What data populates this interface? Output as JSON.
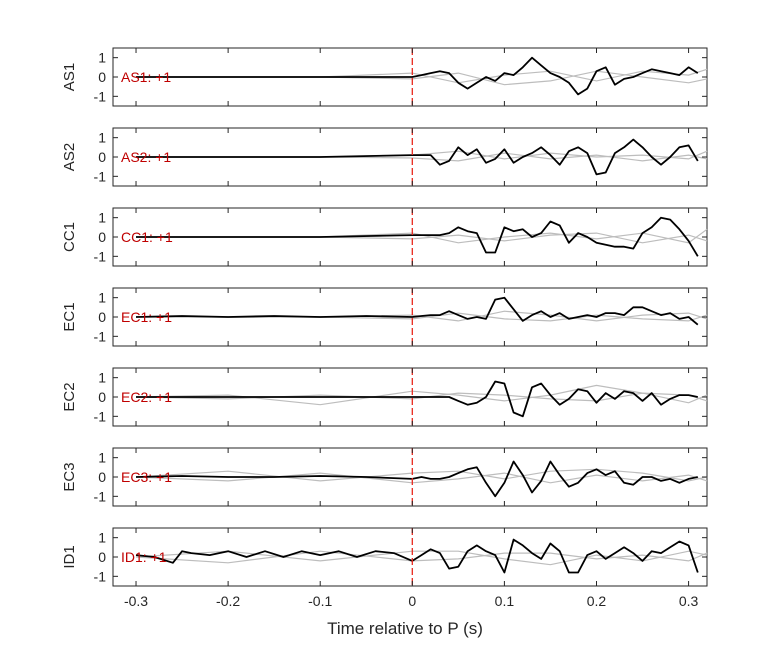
{
  "chart_data": {
    "type": "line",
    "xlabel": "Time relative to P (s)",
    "xlim": [
      -0.325,
      0.32
    ],
    "xticks": [
      -0.3,
      -0.2,
      -0.1,
      0,
      0.1,
      0.2,
      0.3
    ],
    "xtick_labels": [
      "-0.3",
      "-0.2",
      "-0.1",
      "0",
      "0.1",
      "0.2",
      "0.3"
    ],
    "ylim": [
      -1.5,
      1.5
    ],
    "yticks": [
      1,
      0,
      -1
    ],
    "ytick_labels": [
      "1",
      "0",
      "-1"
    ],
    "grid": false,
    "marker_line": {
      "x": 0,
      "color": "#e8281e",
      "style": "dashed"
    },
    "colors": {
      "main": "#000000",
      "background_traces": "#bdbdbd",
      "annotation": "#c00000"
    },
    "panels": [
      {
        "ylabel": "AS1",
        "annotation": "AS1: +1",
        "main": {
          "x": [
            -0.3,
            -0.25,
            -0.2,
            -0.15,
            -0.1,
            -0.05,
            0,
            0.01,
            0.02,
            0.03,
            0.04,
            0.05,
            0.06,
            0.07,
            0.08,
            0.09,
            0.1,
            0.11,
            0.12,
            0.13,
            0.14,
            0.15,
            0.16,
            0.17,
            0.18,
            0.19,
            0.2,
            0.21,
            0.22,
            0.23,
            0.24,
            0.25,
            0.26,
            0.27,
            0.28,
            0.29,
            0.3,
            0.31
          ],
          "y": [
            0,
            0,
            0,
            0,
            0,
            0,
            0,
            0.1,
            0.2,
            0.3,
            0.2,
            -0.3,
            -0.6,
            -0.3,
            0,
            -0.2,
            0.2,
            0.1,
            0.5,
            1.0,
            0.6,
            0.2,
            0,
            -0.3,
            -0.9,
            -0.6,
            0.3,
            0.5,
            -0.4,
            -0.1,
            0,
            0.2,
            0.4,
            0.3,
            0.2,
            0.1,
            0.5,
            0.2
          ]
        },
        "background": [
          {
            "x": [
              -0.3,
              -0.1,
              0,
              0.05,
              0.1,
              0.15,
              0.2,
              0.25,
              0.3,
              0.32
            ],
            "y": [
              0,
              0,
              0.2,
              -0.3,
              0.1,
              0.3,
              -0.2,
              0.3,
              0.1,
              0.4
            ]
          },
          {
            "x": [
              -0.3,
              -0.1,
              0,
              0.05,
              0.1,
              0.15,
              0.2,
              0.25,
              0.3,
              0.32
            ],
            "y": [
              0,
              0,
              -0.1,
              0.2,
              -0.4,
              -0.2,
              0.3,
              0.0,
              -0.3,
              -0.1
            ]
          }
        ]
      },
      {
        "ylabel": "AS2",
        "annotation": "AS2: +1",
        "main": {
          "x": [
            -0.3,
            -0.2,
            -0.1,
            0,
            0.01,
            0.02,
            0.03,
            0.04,
            0.05,
            0.06,
            0.07,
            0.08,
            0.09,
            0.1,
            0.11,
            0.12,
            0.13,
            0.14,
            0.15,
            0.16,
            0.17,
            0.18,
            0.19,
            0.2,
            0.21,
            0.22,
            0.23,
            0.24,
            0.25,
            0.26,
            0.27,
            0.28,
            0.29,
            0.3,
            0.31
          ],
          "y": [
            0,
            0,
            0,
            0.1,
            0.1,
            0.1,
            -0.4,
            -0.2,
            0.5,
            0.1,
            0.4,
            -0.3,
            -0.1,
            0.4,
            -0.3,
            0,
            0.2,
            0.5,
            0.1,
            -0.4,
            0.3,
            0.5,
            0.2,
            -0.9,
            -0.8,
            0.2,
            0.5,
            0.9,
            0.5,
            0,
            -0.4,
            0,
            0.5,
            0.6,
            -0.2
          ]
        },
        "background": [
          {
            "x": [
              -0.3,
              -0.1,
              0,
              0.05,
              0.1,
              0.15,
              0.2,
              0.25,
              0.3,
              0.32
            ],
            "y": [
              0,
              0,
              0.1,
              0.3,
              -0.1,
              0.2,
              0,
              0.1,
              -0.1,
              0.3
            ]
          },
          {
            "x": [
              -0.3,
              -0.1,
              0,
              0.05,
              0.1,
              0.15,
              0.2,
              0.25,
              0.3,
              0.32
            ],
            "y": [
              0,
              0,
              -0.05,
              -0.2,
              0.2,
              -0.1,
              0.1,
              -0.2,
              0.1,
              -0.1
            ]
          }
        ]
      },
      {
        "ylabel": "CC1",
        "annotation": "CC1: +1",
        "main": {
          "x": [
            -0.3,
            -0.2,
            -0.1,
            0,
            0.01,
            0.02,
            0.03,
            0.04,
            0.05,
            0.06,
            0.07,
            0.08,
            0.09,
            0.1,
            0.11,
            0.12,
            0.13,
            0.14,
            0.15,
            0.16,
            0.17,
            0.18,
            0.19,
            0.2,
            0.21,
            0.22,
            0.23,
            0.24,
            0.25,
            0.26,
            0.27,
            0.28,
            0.29,
            0.3,
            0.31
          ],
          "y": [
            0,
            0,
            0,
            0.1,
            0.1,
            0.1,
            0.1,
            0.2,
            0.5,
            0.3,
            0.2,
            -0.8,
            -0.8,
            0.5,
            0.3,
            0.4,
            0,
            0.2,
            0.8,
            0.6,
            -0.3,
            0.2,
            0,
            -0.3,
            -0.4,
            -0.5,
            -0.5,
            -0.6,
            0.2,
            0.5,
            1.0,
            0.9,
            0.4,
            -0.2,
            -1.0
          ]
        },
        "background": [
          {
            "x": [
              -0.3,
              -0.1,
              0,
              0.05,
              0.1,
              0.15,
              0.2,
              0.25,
              0.3,
              0.32
            ],
            "y": [
              0,
              0,
              0.2,
              -0.3,
              0,
              0.2,
              -0.1,
              0.2,
              -0.3,
              0.4
            ]
          },
          {
            "x": [
              -0.3,
              -0.1,
              0,
              0.05,
              0.1,
              0.15,
              0.2,
              0.25,
              0.3,
              0.32
            ],
            "y": [
              0,
              0,
              -0.1,
              0.1,
              -0.2,
              0.1,
              0.2,
              -0.3,
              0.1,
              -0.2
            ]
          }
        ]
      },
      {
        "ylabel": "EC1",
        "annotation": "EC1: +1",
        "main": {
          "x": [
            -0.3,
            -0.25,
            -0.2,
            -0.15,
            -0.1,
            -0.05,
            0,
            0.01,
            0.02,
            0.03,
            0.04,
            0.05,
            0.06,
            0.07,
            0.08,
            0.09,
            0.1,
            0.11,
            0.12,
            0.13,
            0.14,
            0.15,
            0.16,
            0.17,
            0.18,
            0.19,
            0.2,
            0.21,
            0.22,
            0.23,
            0.24,
            0.25,
            0.26,
            0.27,
            0.28,
            0.29,
            0.3,
            0.31
          ],
          "y": [
            0,
            0.05,
            0,
            0.05,
            0,
            0.05,
            0,
            0.05,
            0.1,
            0.1,
            0.3,
            0.1,
            -0.1,
            0,
            -0.1,
            0.9,
            1.0,
            0.4,
            -0.2,
            0.1,
            0.3,
            0,
            0.2,
            -0.1,
            0,
            0.1,
            0,
            0.2,
            0.2,
            0.1,
            0.5,
            0.5,
            0.3,
            0.1,
            0.2,
            -0.1,
            0,
            -0.4
          ]
        },
        "background": [
          {
            "x": [
              -0.3,
              -0.1,
              0,
              0.05,
              0.1,
              0.15,
              0.2,
              0.25,
              0.3,
              0.32
            ],
            "y": [
              0,
              0,
              0.1,
              -0.2,
              0.3,
              0.1,
              -0.2,
              0.1,
              0.2,
              -0.1
            ]
          },
          {
            "x": [
              -0.3,
              -0.1,
              0,
              0.05,
              0.1,
              0.15,
              0.2,
              0.25,
              0.3,
              0.32
            ],
            "y": [
              0,
              0,
              -0.1,
              0.2,
              -0.1,
              -0.2,
              0.1,
              -0.1,
              -0.2,
              0.1
            ]
          }
        ]
      },
      {
        "ylabel": "EC2",
        "annotation": "EC2: +1",
        "main": {
          "x": [
            -0.3,
            -0.25,
            -0.2,
            -0.15,
            -0.1,
            -0.05,
            0,
            0.01,
            0.02,
            0.03,
            0.04,
            0.05,
            0.06,
            0.07,
            0.08,
            0.09,
            0.1,
            0.11,
            0.12,
            0.13,
            0.14,
            0.15,
            0.16,
            0.17,
            0.18,
            0.19,
            0.2,
            0.21,
            0.22,
            0.23,
            0.24,
            0.25,
            0.26,
            0.27,
            0.28,
            0.29,
            0.3,
            0.31
          ],
          "y": [
            0,
            0,
            0,
            0,
            0,
            0,
            0,
            0,
            0,
            0,
            0,
            -0.2,
            -0.4,
            -0.3,
            0,
            0.8,
            0.7,
            -0.8,
            -1.0,
            0.5,
            0.7,
            0.1,
            -0.4,
            -0.1,
            0.4,
            0.3,
            -0.3,
            0.2,
            -0.1,
            0.3,
            0.2,
            -0.2,
            0.2,
            -0.4,
            -0.1,
            0.1,
            0.1,
            0.0
          ]
        },
        "background": [
          {
            "x": [
              -0.3,
              -0.2,
              -0.1,
              0,
              0.05,
              0.1,
              0.15,
              0.2,
              0.25,
              0.3,
              0.32
            ],
            "y": [
              0,
              0.1,
              -0.4,
              0.3,
              0.1,
              -0.2,
              0.1,
              0.6,
              0.2,
              -0.3,
              0.1
            ]
          },
          {
            "x": [
              -0.3,
              -0.2,
              -0.1,
              0,
              0.05,
              0.1,
              0.15,
              0.2,
              0.25,
              0.3,
              0.32
            ],
            "y": [
              0,
              -0.1,
              0.1,
              -0.1,
              0.2,
              0.1,
              -0.1,
              -0.2,
              0.2,
              0.1,
              -0.2
            ]
          }
        ]
      },
      {
        "ylabel": "EC3",
        "annotation": "EC3: +1",
        "main": {
          "x": [
            -0.3,
            -0.25,
            -0.2,
            -0.15,
            -0.1,
            -0.05,
            0,
            0.01,
            0.02,
            0.03,
            0.04,
            0.05,
            0.06,
            0.07,
            0.08,
            0.09,
            0.1,
            0.11,
            0.12,
            0.13,
            0.14,
            0.15,
            0.16,
            0.17,
            0.18,
            0.19,
            0.2,
            0.21,
            0.22,
            0.23,
            0.24,
            0.25,
            0.26,
            0.27,
            0.28,
            0.29,
            0.3,
            0.31
          ],
          "y": [
            0,
            0.05,
            0,
            0,
            0.05,
            0,
            -0.1,
            0,
            -0.1,
            -0.1,
            0,
            0.2,
            0.4,
            0.5,
            -0.3,
            -1.0,
            -0.3,
            0.8,
            0.1,
            -0.8,
            -0.2,
            0.8,
            0.1,
            -0.5,
            -0.3,
            0.2,
            0.4,
            0.1,
            0.3,
            -0.3,
            -0.4,
            0,
            0,
            -0.2,
            -0.1,
            -0.3,
            -0.1,
            0
          ]
        },
        "background": [
          {
            "x": [
              -0.3,
              -0.2,
              -0.1,
              0,
              0.05,
              0.1,
              0.15,
              0.2,
              0.25,
              0.3,
              0.32
            ],
            "y": [
              0,
              0.3,
              -0.2,
              0.2,
              0.3,
              -0.1,
              0.3,
              0.4,
              0.2,
              -0.2,
              0
            ]
          },
          {
            "x": [
              -0.3,
              -0.2,
              -0.1,
              0,
              0.05,
              0.1,
              0.15,
              0.2,
              0.25,
              0.3,
              0.32
            ],
            "y": [
              0,
              -0.2,
              0.2,
              -0.3,
              -0.1,
              0.2,
              -0.3,
              0.1,
              -0.2,
              0.1,
              -0.2
            ]
          }
        ]
      },
      {
        "ylabel": "ID1",
        "annotation": "ID1: +1",
        "main": {
          "x": [
            -0.3,
            -0.28,
            -0.26,
            -0.25,
            -0.24,
            -0.22,
            -0.2,
            -0.18,
            -0.16,
            -0.14,
            -0.12,
            -0.1,
            -0.08,
            -0.06,
            -0.04,
            -0.02,
            0,
            0.01,
            0.02,
            0.03,
            0.04,
            0.05,
            0.06,
            0.07,
            0.08,
            0.09,
            0.1,
            0.11,
            0.12,
            0.13,
            0.14,
            0.15,
            0.16,
            0.17,
            0.18,
            0.19,
            0.2,
            0.21,
            0.22,
            0.23,
            0.24,
            0.25,
            0.26,
            0.27,
            0.28,
            0.29,
            0.3,
            0.31
          ],
          "y": [
            0.1,
            0,
            -0.3,
            0.3,
            0.2,
            0.1,
            0.3,
            0,
            0.3,
            0,
            0.3,
            0.1,
            0.3,
            0,
            0.3,
            0.2,
            -0.2,
            0.1,
            0.4,
            0.2,
            -0.6,
            -0.5,
            0.3,
            0.6,
            0.3,
            0.1,
            -0.8,
            0.9,
            0.6,
            0.2,
            -0.1,
            0.7,
            0.3,
            -0.8,
            -0.8,
            0.1,
            0.3,
            -0.1,
            0.2,
            0.5,
            0.2,
            -0.2,
            0.3,
            0.2,
            0.5,
            0.8,
            0.6,
            -0.8
          ]
        },
        "background": [
          {
            "x": [
              -0.3,
              -0.2,
              -0.1,
              0,
              0.05,
              0.1,
              0.15,
              0.2,
              0.25,
              0.3,
              0.32
            ],
            "y": [
              0,
              0.3,
              -0.2,
              0.3,
              0.3,
              -0.1,
              -0.4,
              0.1,
              -0.2,
              0.3,
              0.1
            ]
          },
          {
            "x": [
              -0.3,
              -0.2,
              -0.1,
              0,
              0.05,
              0.1,
              0.15,
              0.2,
              0.25,
              0.3,
              0.32
            ],
            "y": [
              0,
              -0.3,
              0.3,
              -0.2,
              -0.1,
              0.2,
              0.2,
              -0.1,
              0.1,
              -0.2,
              0.2
            ]
          }
        ]
      }
    ]
  }
}
